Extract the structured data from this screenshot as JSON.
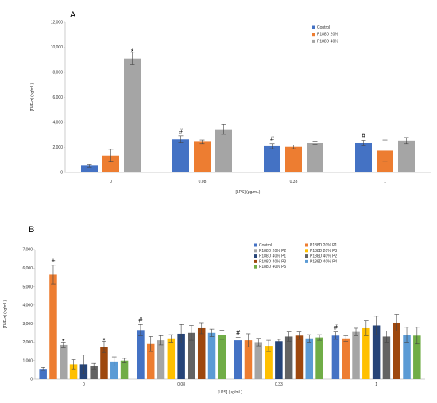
{
  "chart_data": [
    {
      "type": "bar",
      "panel_label": "A",
      "title": "",
      "xlabel": "[LPS]   (μg/mL)",
      "ylabel": "[TNF-α] (pg/mL)",
      "ylim": [
        0,
        12000
      ],
      "yticks": [
        "0",
        "2,000",
        "4,000",
        "6,000",
        "8,000",
        "10,000",
        "12,000"
      ],
      "categories": [
        "0",
        "0.08",
        "0.33",
        "1"
      ],
      "legend_position": "top-right",
      "grid": false,
      "series": [
        {
          "name": "Control",
          "color": "#4472C4",
          "values": [
            550,
            2650,
            2100,
            2350
          ],
          "errors": [
            120,
            280,
            200,
            220
          ]
        },
        {
          "name": "P188D 20%",
          "color": "#ED7D31",
          "values": [
            1350,
            2450,
            2050,
            1750
          ],
          "errors": [
            500,
            150,
            150,
            850
          ]
        },
        {
          "name": "P188D 40%",
          "color": "#A5A5A5",
          "values": [
            9100,
            3450,
            2350,
            2550
          ],
          "errors": [
            500,
            400,
            100,
            250
          ]
        }
      ],
      "annotations": [
        {
          "symbol": "*",
          "series": 2,
          "category": 0
        },
        {
          "symbol": "#",
          "series": 0,
          "category": 1
        },
        {
          "symbol": "#",
          "series": 0,
          "category": 2
        },
        {
          "symbol": "#",
          "series": 0,
          "category": 3
        }
      ]
    },
    {
      "type": "bar",
      "panel_label": "B",
      "title": "",
      "xlabel": "[LPS]   (μg/mL)",
      "ylabel": "[TNF-α] (pg/mL)",
      "ylim": [
        0,
        7000
      ],
      "yticks": [
        "0",
        "1,000",
        "2,000",
        "3,000",
        "4,000",
        "5,000",
        "6,000",
        "7,000"
      ],
      "categories": [
        "0",
        "0.08",
        "0.33",
        "1"
      ],
      "legend_position": "top-right",
      "grid": false,
      "series": [
        {
          "name": "Control",
          "color": "#4472C4",
          "values": [
            550,
            2650,
            2100,
            2350
          ],
          "errors": [
            80,
            300,
            150,
            200
          ]
        },
        {
          "name": "P188D 20% P1",
          "color": "#ED7D31",
          "values": [
            5650,
            1900,
            2100,
            2200
          ],
          "errors": [
            500,
            400,
            350,
            150
          ]
        },
        {
          "name": "P188D 20% P2",
          "color": "#A5A5A5",
          "values": [
            1850,
            2100,
            2000,
            2550
          ],
          "errors": [
            150,
            250,
            200,
            200
          ]
        },
        {
          "name": "P188D 20% P3",
          "color": "#FFC000",
          "values": [
            800,
            2200,
            1800,
            2750
          ],
          "errors": [
            250,
            200,
            300,
            400
          ]
        },
        {
          "name": "P188D 40% P1",
          "color": "#264478",
          "values": [
            800,
            2450,
            2050,
            2900
          ],
          "errors": [
            500,
            500,
            100,
            500
          ]
        },
        {
          "name": "P188D 40% P2",
          "color": "#636363",
          "values": [
            700,
            2500,
            2300,
            2300
          ],
          "errors": [
            150,
            400,
            250,
            300
          ]
        },
        {
          "name": "P188D 40% P3",
          "color": "#9E480E",
          "values": [
            1750,
            2750,
            2350,
            3050
          ],
          "errors": [
            300,
            300,
            200,
            450
          ]
        },
        {
          "name": "P188D 40% P4",
          "color": "#5B9BD5",
          "values": [
            950,
            2500,
            2200,
            2400
          ],
          "errors": [
            250,
            200,
            200,
            400
          ]
        },
        {
          "name": "P188D 40% P5",
          "color": "#70AD47",
          "values": [
            1000,
            2400,
            2250,
            2350
          ],
          "errors": [
            120,
            250,
            150,
            450
          ]
        }
      ],
      "annotations": [
        {
          "symbol": "+",
          "series": 1,
          "category": 0
        },
        {
          "symbol": "*",
          "series": 2,
          "category": 0
        },
        {
          "symbol": "*",
          "series": 6,
          "category": 0
        },
        {
          "symbol": "#",
          "series": 0,
          "category": 1
        },
        {
          "symbol": "#",
          "series": 0,
          "category": 2
        },
        {
          "symbol": "#",
          "series": 0,
          "category": 3
        }
      ]
    }
  ]
}
